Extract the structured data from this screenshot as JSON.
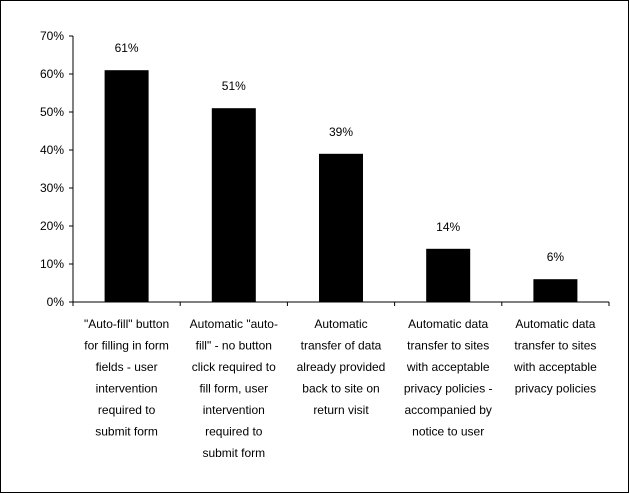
{
  "chart_data": {
    "type": "bar",
    "title": "",
    "xlabel": "",
    "ylabel": "",
    "ylim": [
      0,
      0.7
    ],
    "y_ticks": [
      "0%",
      "10%",
      "20%",
      "30%",
      "40%",
      "50%",
      "60%",
      "70%"
    ],
    "grid": false,
    "legend": "none",
    "bar_color": "#000000",
    "categories": [
      [
        "\"Auto-fill\" button",
        "for filling in form",
        "fields - user",
        "intervention",
        "required to",
        "submit form"
      ],
      [
        "Automatic \"auto-",
        "fill\" - no button",
        "click required to",
        "fill form, user",
        "intervention",
        "required to",
        "submit form"
      ],
      [
        "Automatic",
        "transfer of data",
        "already provided",
        "back to site on",
        "return visit"
      ],
      [
        "Automatic data",
        "transfer to sites",
        "with acceptable",
        "privacy policies -",
        "accompanied by",
        "notice to user"
      ],
      [
        "Automatic data",
        "transfer to sites",
        "with acceptable",
        "privacy policies"
      ]
    ],
    "values": [
      0.61,
      0.51,
      0.39,
      0.14,
      0.06
    ],
    "data_labels": [
      "61%",
      "51%",
      "39%",
      "14%",
      "6%"
    ]
  }
}
